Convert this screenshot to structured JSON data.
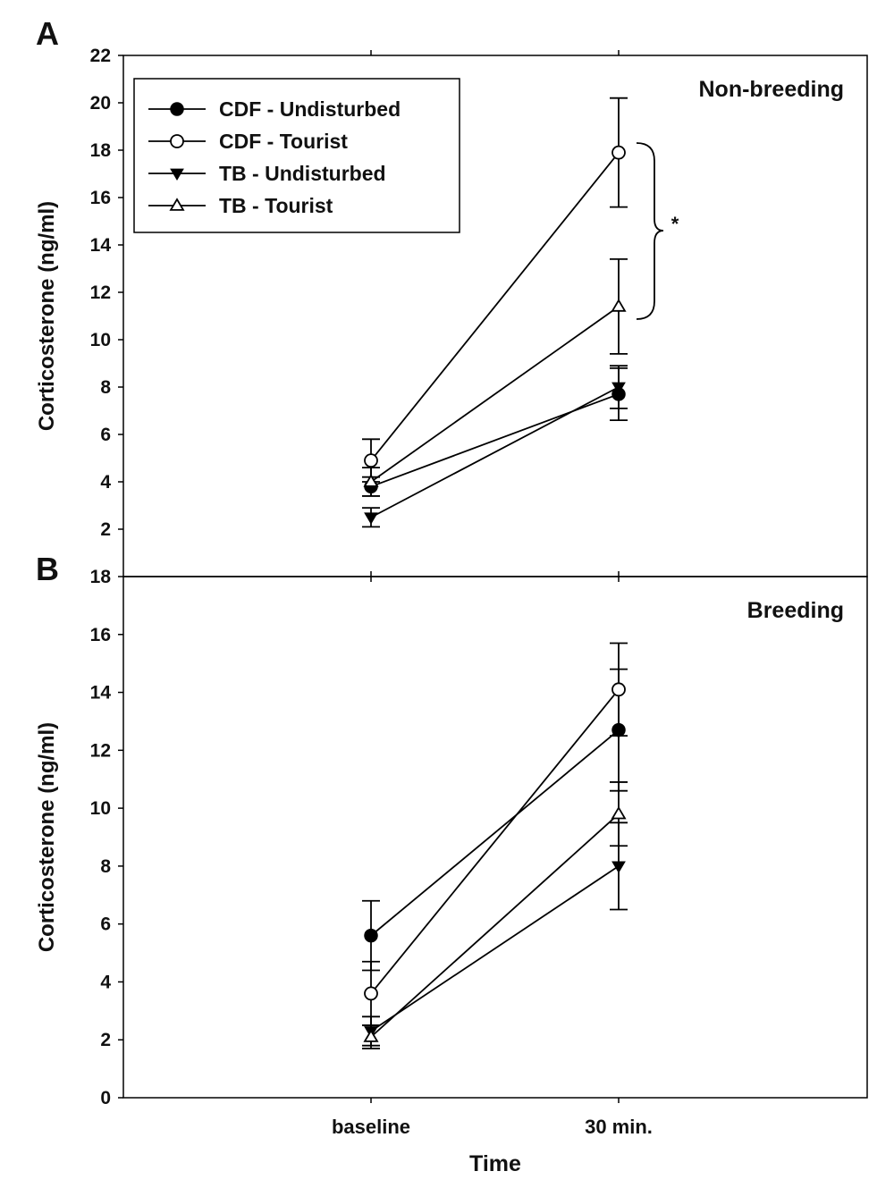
{
  "chart_data": [
    {
      "type": "line",
      "panel_label": "A",
      "title": "Non-breeding",
      "xlabel": "",
      "ylabel": "Corticosterone (ng/ml)",
      "categories": [
        "baseline",
        "30 min."
      ],
      "ylim": [
        0,
        22
      ],
      "yticks": [
        2,
        4,
        6,
        8,
        10,
        12,
        14,
        16,
        18,
        20,
        22
      ],
      "legend": {
        "placement": "top-left"
      },
      "annotation": "*",
      "series": [
        {
          "name": "CDF - Undisturbed",
          "marker": "filled-circle",
          "values": [
            3.8,
            7.7
          ],
          "errors": [
            0.4,
            1.1
          ]
        },
        {
          "name": "CDF - Tourist",
          "marker": "open-circle",
          "values": [
            4.9,
            17.9
          ],
          "errors": [
            0.9,
            2.3
          ]
        },
        {
          "name": "TB - Undisturbed",
          "marker": "filled-triangle-down",
          "values": [
            2.5,
            8.0
          ],
          "errors": [
            0.4,
            0.9
          ]
        },
        {
          "name": "TB - Tourist",
          "marker": "open-triangle-up",
          "values": [
            4.0,
            11.4
          ],
          "errors": [
            0.6,
            2.0
          ]
        }
      ]
    },
    {
      "type": "line",
      "panel_label": "B",
      "title": "Breeding",
      "xlabel": "Time",
      "ylabel": "Corticosterone (ng/ml)",
      "categories": [
        "baseline",
        "30 min."
      ],
      "ylim": [
        0,
        18
      ],
      "yticks": [
        0,
        2,
        4,
        6,
        8,
        10,
        12,
        14,
        16,
        18
      ],
      "series": [
        {
          "name": "CDF - Undisturbed",
          "marker": "filled-circle",
          "values": [
            5.6,
            12.7
          ],
          "errors": [
            1.2,
            2.1
          ]
        },
        {
          "name": "CDF - Tourist",
          "marker": "open-circle",
          "values": [
            3.6,
            14.1
          ],
          "errors": [
            1.1,
            1.6
          ]
        },
        {
          "name": "TB - Undisturbed",
          "marker": "filled-triangle-down",
          "values": [
            2.3,
            8.0
          ],
          "errors": [
            0.5,
            1.5
          ]
        },
        {
          "name": "TB - Tourist",
          "marker": "open-triangle-up",
          "values": [
            2.1,
            9.8
          ],
          "errors": [
            0.4,
            1.1
          ]
        }
      ]
    }
  ]
}
